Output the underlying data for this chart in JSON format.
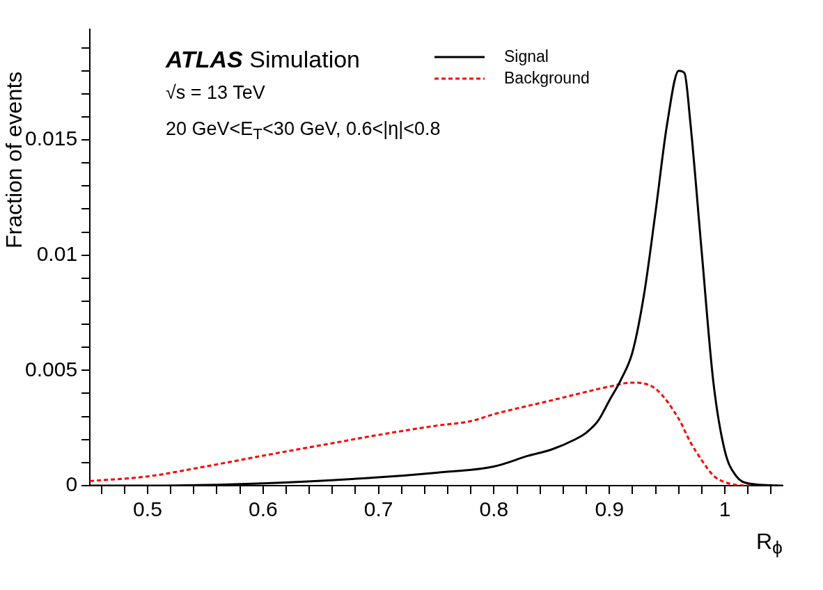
{
  "chart_data": {
    "type": "line",
    "xlabel": "R$_{ϕ}$",
    "ylabel": "Fraction of events",
    "annotations": [
      "ATLAS Simulation",
      "√s = 13 TeV",
      "20 GeV<E$_{T}$<30 GeV, 0.6<|η|<0.8"
    ],
    "xlim": [
      0.45,
      1.05
    ],
    "xticks": [
      {
        "value": 0.46,
        "label": null
      },
      {
        "value": 0.48,
        "label": null
      },
      0.5,
      {
        "value": 0.52,
        "label": null
      },
      {
        "value": 0.54,
        "label": null
      },
      {
        "value": 0.56,
        "label": null
      },
      {
        "value": 0.58,
        "label": null
      },
      0.6,
      {
        "value": 0.62,
        "label": null
      },
      {
        "value": 0.64,
        "label": null
      },
      {
        "value": 0.66,
        "label": null
      },
      {
        "value": 0.68,
        "label": null
      },
      0.7,
      {
        "value": 0.72,
        "label": null
      },
      {
        "value": 0.74,
        "label": null
      },
      {
        "value": 0.76,
        "label": null
      },
      {
        "value": 0.78,
        "label": null
      },
      0.8,
      {
        "value": 0.82,
        "label": null
      },
      {
        "value": 0.84,
        "label": null
      },
      {
        "value": 0.86,
        "label": null
      },
      {
        "value": 0.88,
        "label": null
      },
      0.9,
      {
        "value": 0.92,
        "label": null
      },
      {
        "value": 0.94,
        "label": null
      },
      {
        "value": 0.96,
        "label": null
      },
      {
        "value": 0.98,
        "label": null
      },
      1,
      {
        "value": 1.02,
        "label": null
      },
      {
        "value": 1.04,
        "label": null
      }
    ],
    "ylim": [
      0,
      0.0198
    ],
    "yticks": [
      0,
      {
        "value": 0.001,
        "label": null
      },
      {
        "value": 0.002,
        "label": null
      },
      {
        "value": 0.003,
        "label": null
      },
      {
        "value": 0.004,
        "label": null
      },
      0.005,
      {
        "value": 0.006,
        "label": null
      },
      {
        "value": 0.007,
        "label": null
      },
      {
        "value": 0.008,
        "label": null
      },
      {
        "value": 0.009,
        "label": null
      },
      0.01,
      {
        "value": 0.011,
        "label": null
      },
      {
        "value": 0.012,
        "label": null
      },
      {
        "value": 0.013,
        "label": null
      },
      {
        "value": 0.014,
        "label": null
      },
      0.015,
      {
        "value": 0.016,
        "label": null
      },
      {
        "value": 0.017,
        "label": null
      },
      {
        "value": 0.018,
        "label": null
      },
      {
        "value": 0.019,
        "label": null
      }
    ],
    "legend": "top",
    "grid": false,
    "series": [
      {
        "name": "Signal",
        "color": "#000000",
        "line_style": "solid",
        "x": [
          0.45,
          0.5,
          0.6,
          0.7,
          0.75,
          0.8,
          0.83,
          0.85,
          0.87,
          0.88,
          0.89,
          0.9,
          0.91,
          0.92,
          0.93,
          0.94,
          0.95,
          0.96,
          0.965,
          0.97,
          0.98,
          0.99,
          1.0,
          1.01,
          1.02,
          1.05
        ],
        "values": [
          0,
          0,
          0.0001,
          0.00036,
          0.00056,
          0.00083,
          0.0013,
          0.00157,
          0.002,
          0.0023,
          0.0028,
          0.0037,
          0.0046,
          0.0058,
          0.0083,
          0.0119,
          0.0157,
          0.018,
          0.0179,
          0.0158,
          0.0101,
          0.0045,
          0.0015,
          0.0004,
          0.0001,
          0
        ]
      },
      {
        "name": "Background",
        "color": "#ff0000",
        "line_style": "dashed",
        "x": [
          0.45,
          0.5,
          0.55,
          0.6,
          0.65,
          0.7,
          0.75,
          0.78,
          0.8,
          0.85,
          0.9,
          0.92,
          0.94,
          0.96,
          0.97,
          0.98,
          0.99,
          1.0,
          1.02,
          1.05
        ],
        "values": [
          0.0002,
          0.0004,
          0.00083,
          0.0013,
          0.00175,
          0.0022,
          0.0026,
          0.0028,
          0.0031,
          0.0037,
          0.0043,
          0.00447,
          0.0042,
          0.0029,
          0.0019,
          0.0011,
          0.00044,
          0.00015,
          0,
          0
        ]
      }
    ]
  }
}
